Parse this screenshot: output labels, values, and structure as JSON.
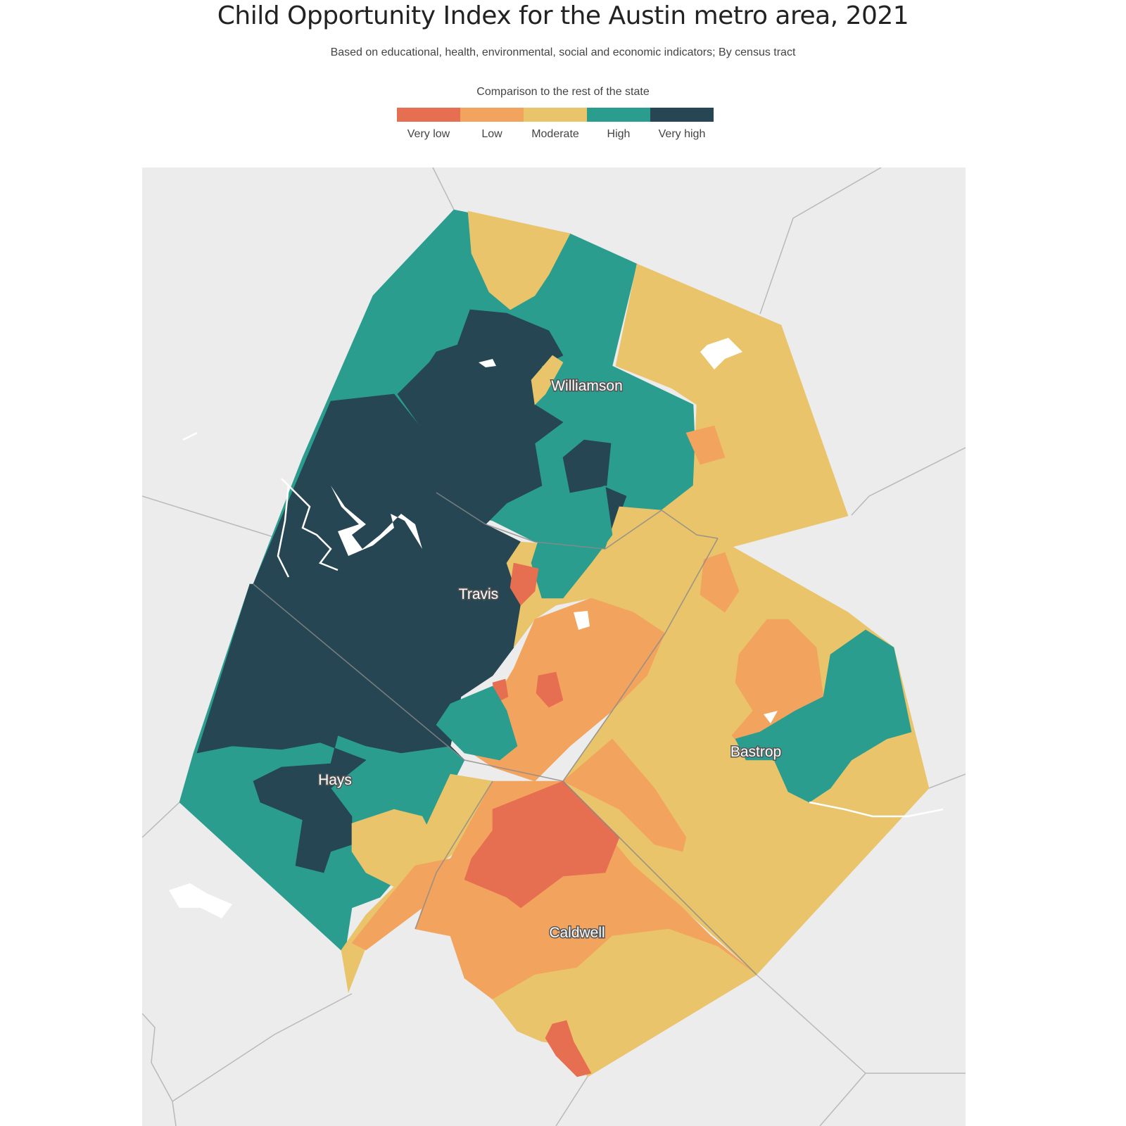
{
  "title": "Child Opportunity Index for the Austin metro area, 2021",
  "subtitle": "Based on educational, health, environmental, social and economic indicators; By census tract",
  "legend": {
    "title": "Comparison to the rest of the state",
    "items": [
      {
        "label": "Very low",
        "color": "#e76f51"
      },
      {
        "label": "Low",
        "color": "#f2a35e"
      },
      {
        "label": "Moderate",
        "color": "#e9c46a"
      },
      {
        "label": "High",
        "color": "#2a9d8f"
      },
      {
        "label": "Very high",
        "color": "#264653"
      }
    ]
  },
  "counties": {
    "williamson": "Williamson",
    "travis": "Travis",
    "hays": "Hays",
    "bastrop": "Bastrop",
    "caldwell": "Caldwell"
  },
  "colors": {
    "background_land": "#ececec",
    "county_border": "#b9b9b9",
    "water": "#ffffff"
  }
}
